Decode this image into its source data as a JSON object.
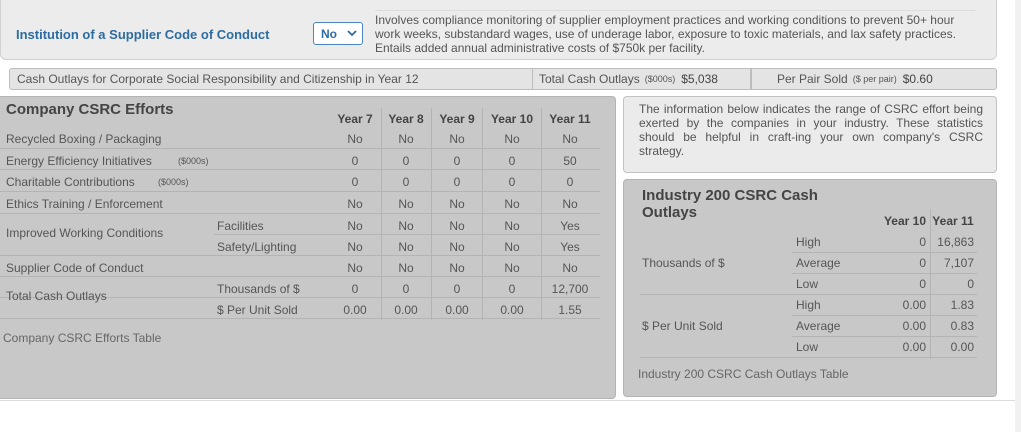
{
  "top": {
    "label": "Institution of a Supplier Code of Conduct",
    "select_value": "No",
    "description": "Involves compliance monitoring of supplier employment practices and working conditions to prevent 50+ hour work weeks, substandard wages, use of underage labor, exposure to toxic materials, and lax safety practices. Entails added annual administrative costs of $750k per facility."
  },
  "summary": {
    "label": "Cash Outlays for Corporate Social Responsibility and Citizenship in Year 12",
    "total_label": "Total Cash Outlays",
    "total_unit": "($000s)",
    "total_value": "$5,038",
    "per_pair_label": "Per Pair Sold",
    "per_pair_unit": "($ per pair)",
    "per_pair_value": "$0.60"
  },
  "company_table": {
    "title": "Company CSRC Efforts",
    "years": [
      "Year 7",
      "Year 8",
      "Year 9",
      "Year 10",
      "Year 11"
    ],
    "rows": [
      {
        "label": "Recycled Boxing / Packaging",
        "unit": "",
        "sub": "",
        "values": [
          "No",
          "No",
          "No",
          "No",
          "No"
        ]
      },
      {
        "label": "Energy Efficiency Initiatives",
        "unit": "($000s)",
        "sub": "",
        "values": [
          "0",
          "0",
          "0",
          "0",
          "50"
        ]
      },
      {
        "label": "Charitable Contributions",
        "unit": "($000s)",
        "sub": "",
        "values": [
          "0",
          "0",
          "0",
          "0",
          "0"
        ]
      },
      {
        "label": "Ethics Training / Enforcement",
        "unit": "",
        "sub": "",
        "values": [
          "No",
          "No",
          "No",
          "No",
          "No"
        ]
      },
      {
        "label": "Improved Working Conditions",
        "unit": "",
        "sub": "Facilities",
        "values": [
          "No",
          "No",
          "No",
          "No",
          "Yes"
        ]
      },
      {
        "label": "",
        "unit": "",
        "sub": "Safety/Lighting",
        "values": [
          "No",
          "No",
          "No",
          "No",
          "Yes"
        ]
      },
      {
        "label": "Supplier Code of Conduct",
        "unit": "",
        "sub": "",
        "values": [
          "No",
          "No",
          "No",
          "No",
          "No"
        ]
      },
      {
        "label": "Total Cash Outlays",
        "unit": "",
        "sub": "Thousands of $",
        "values": [
          "0",
          "0",
          "0",
          "0",
          "12,700"
        ]
      },
      {
        "label": "",
        "unit": "",
        "sub": "$ Per Unit Sold",
        "values": [
          "0.00",
          "0.00",
          "0.00",
          "0.00",
          "1.55"
        ]
      }
    ],
    "caption": "Company CSRC Efforts Table"
  },
  "info_text": "The information below indicates the range of CSRC effort being exerted by the companies in your industry. These statistics should be helpful in craft-ing your own company's CSRC strategy.",
  "industry_table": {
    "title": "Industry 200 CSRC Cash Outlays",
    "years": [
      "Year 10",
      "Year 11"
    ],
    "groups": [
      {
        "label": "Thousands of $",
        "rows": [
          {
            "stat": "High",
            "values": [
              "0",
              "16,863"
            ]
          },
          {
            "stat": "Average",
            "values": [
              "0",
              "7,107"
            ]
          },
          {
            "stat": "Low",
            "values": [
              "0",
              "0"
            ]
          }
        ]
      },
      {
        "label": "$ Per Unit Sold",
        "rows": [
          {
            "stat": "High",
            "values": [
              "0.00",
              "1.83"
            ]
          },
          {
            "stat": "Average",
            "values": [
              "0.00",
              "0.83"
            ]
          },
          {
            "stat": "Low",
            "values": [
              "0.00",
              "0.00"
            ]
          }
        ]
      }
    ],
    "caption": "Industry 200 CSRC Cash Outlays Table"
  }
}
